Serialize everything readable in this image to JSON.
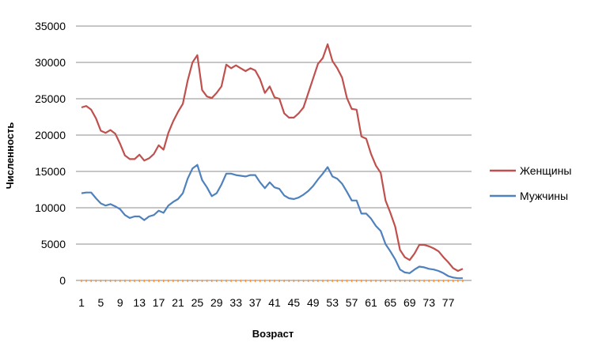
{
  "chart_data": {
    "type": "line",
    "xlabel": "Возраст",
    "ylabel": "Численность",
    "ylim": [
      0,
      35000
    ],
    "yticks": [
      0,
      5000,
      10000,
      15000,
      20000,
      25000,
      30000,
      35000
    ],
    "xlim": [
      1,
      80
    ],
    "xticks": [
      1,
      5,
      9,
      13,
      17,
      21,
      25,
      29,
      33,
      37,
      41,
      45,
      49,
      53,
      57,
      61,
      65,
      69,
      73,
      77
    ],
    "grid": "horizontal",
    "legend_position": "right",
    "series": [
      {
        "name": "Женщины",
        "color": "#c0504d",
        "x": [
          1,
          2,
          3,
          4,
          5,
          6,
          7,
          8,
          9,
          10,
          11,
          12,
          13,
          14,
          15,
          16,
          17,
          18,
          19,
          20,
          21,
          22,
          23,
          24,
          25,
          26,
          27,
          28,
          29,
          30,
          31,
          32,
          33,
          34,
          35,
          36,
          37,
          38,
          39,
          40,
          41,
          42,
          43,
          44,
          45,
          46,
          47,
          48,
          49,
          50,
          51,
          52,
          53,
          54,
          55,
          56,
          57,
          58,
          59,
          60,
          61,
          62,
          63,
          64,
          65,
          66,
          67,
          68,
          69,
          70,
          71,
          72,
          73,
          74,
          75,
          76,
          77,
          78,
          79,
          80
        ],
        "values": [
          23800,
          24000,
          23500,
          22300,
          20600,
          20300,
          20700,
          20200,
          18800,
          17200,
          16700,
          16700,
          17300,
          16500,
          16800,
          17400,
          18600,
          18000,
          20300,
          21900,
          23200,
          24300,
          27500,
          30000,
          31000,
          26200,
          25300,
          25100,
          25800,
          26700,
          29700,
          29200,
          29600,
          29200,
          28800,
          29200,
          28900,
          27700,
          25800,
          26700,
          25200,
          25000,
          23000,
          22400,
          22400,
          23000,
          23800,
          25800,
          27800,
          29800,
          30600,
          32500,
          30200,
          29200,
          27900,
          25100,
          23600,
          23500,
          19800,
          19500,
          17400,
          15800,
          14800,
          11000,
          9300,
          7400,
          4200,
          3200,
          2800,
          3700,
          4900,
          4900,
          4700,
          4400,
          4000,
          3200,
          2500,
          1700,
          1300,
          1600
        ]
      },
      {
        "name": "Мужчины",
        "color": "#4f81bd",
        "x": [
          1,
          2,
          3,
          4,
          5,
          6,
          7,
          8,
          9,
          10,
          11,
          12,
          13,
          14,
          15,
          16,
          17,
          18,
          19,
          20,
          21,
          22,
          23,
          24,
          25,
          26,
          27,
          28,
          29,
          30,
          31,
          32,
          33,
          34,
          35,
          36,
          37,
          38,
          39,
          40,
          41,
          42,
          43,
          44,
          45,
          46,
          47,
          48,
          49,
          50,
          51,
          52,
          53,
          54,
          55,
          56,
          57,
          58,
          59,
          60,
          61,
          62,
          63,
          64,
          65,
          66,
          67,
          68,
          69,
          70,
          71,
          72,
          73,
          74,
          75,
          76,
          77,
          78,
          79,
          80
        ],
        "values": [
          12000,
          12100,
          12100,
          11300,
          10600,
          10300,
          10500,
          10200,
          9800,
          9000,
          8600,
          8800,
          8800,
          8300,
          8800,
          9000,
          9600,
          9300,
          10300,
          10800,
          11200,
          12000,
          14000,
          15400,
          15900,
          13800,
          12800,
          11600,
          12000,
          13200,
          14700,
          14700,
          14500,
          14400,
          14300,
          14500,
          14500,
          13500,
          12700,
          13500,
          12800,
          12600,
          11700,
          11300,
          11200,
          11400,
          11800,
          12300,
          13000,
          13900,
          14700,
          15600,
          14300,
          14000,
          13300,
          12200,
          11000,
          11000,
          9200,
          9200,
          8500,
          7500,
          6800,
          5000,
          4000,
          2900,
          1500,
          1100,
          1000,
          1500,
          1900,
          1800,
          1600,
          1500,
          1300,
          1000,
          600,
          400,
          300,
          300
        ]
      }
    ]
  }
}
